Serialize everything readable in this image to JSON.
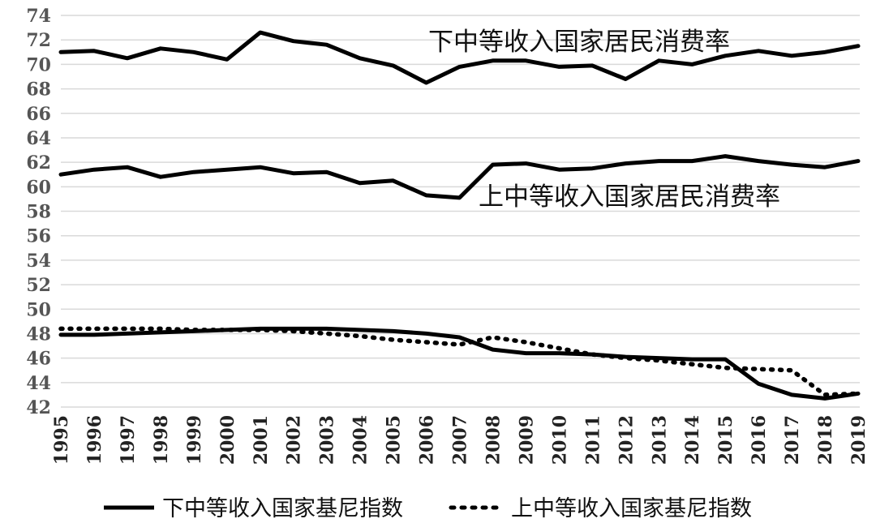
{
  "chart_data": {
    "type": "line",
    "title": "",
    "xlabel": "",
    "ylabel": "",
    "ylim": [
      42,
      74
    ],
    "y_ticks": [
      42,
      44,
      46,
      48,
      50,
      52,
      54,
      56,
      58,
      60,
      62,
      64,
      66,
      68,
      70,
      72,
      74
    ],
    "grid": "horizontal",
    "legend_position": "bottom",
    "x": [
      "1995",
      "1996",
      "1997",
      "1998",
      "1999",
      "2000",
      "2001",
      "2002",
      "2003",
      "2004",
      "2005",
      "2006",
      "2007",
      "2008",
      "2009",
      "2010",
      "2011",
      "2012",
      "2013",
      "2014",
      "2015",
      "2016",
      "2017",
      "2018",
      "2019"
    ],
    "series": [
      {
        "name": "下中等收入国家居民消费率",
        "style": "solid",
        "color": "#000000",
        "values": [
          71.0,
          71.1,
          70.5,
          71.3,
          71.0,
          70.4,
          72.6,
          71.9,
          71.6,
          70.5,
          69.9,
          68.5,
          69.8,
          70.3,
          70.3,
          69.8,
          69.9,
          68.8,
          70.3,
          70.0,
          70.7,
          71.1,
          70.7,
          71.0,
          71.5
        ]
      },
      {
        "name": "上中等收入国家居民消费率",
        "style": "solid",
        "color": "#000000",
        "values": [
          61.0,
          61.4,
          61.6,
          60.8,
          61.2,
          61.4,
          61.6,
          61.1,
          61.2,
          60.3,
          60.5,
          59.3,
          59.1,
          61.8,
          61.9,
          61.4,
          61.5,
          61.9,
          62.1,
          62.1,
          62.5,
          62.1,
          61.8,
          61.6,
          62.1
        ]
      },
      {
        "name": "下中等收入国家基尼指数",
        "style": "solid",
        "color": "#000000",
        "values": [
          47.9,
          47.9,
          48.0,
          48.1,
          48.2,
          48.3,
          48.4,
          48.4,
          48.4,
          48.3,
          48.2,
          48.0,
          47.7,
          46.7,
          46.4,
          46.4,
          46.3,
          46.1,
          46.0,
          45.9,
          45.9,
          43.9,
          43.0,
          42.7,
          43.1
        ]
      },
      {
        "name": "上中等收入国家基尼指数",
        "style": "dotted",
        "color": "#000000",
        "values": [
          48.4,
          48.4,
          48.4,
          48.4,
          48.3,
          48.3,
          48.3,
          48.2,
          48.0,
          47.8,
          47.5,
          47.3,
          47.1,
          47.7,
          47.3,
          46.8,
          46.3,
          46.0,
          45.8,
          45.5,
          45.2,
          45.1,
          45.0,
          43.0,
          43.1
        ]
      }
    ],
    "annotations": [
      {
        "text": "下中等收入国家居民消费率",
        "near_series": 0
      },
      {
        "text": "上中等收入国家居民消费率",
        "near_series": 1
      }
    ],
    "legend": [
      {
        "label": "下中等收入国家基尼指数",
        "style": "solid"
      },
      {
        "label": "上中等收入国家基尼指数",
        "style": "dotted"
      }
    ]
  }
}
